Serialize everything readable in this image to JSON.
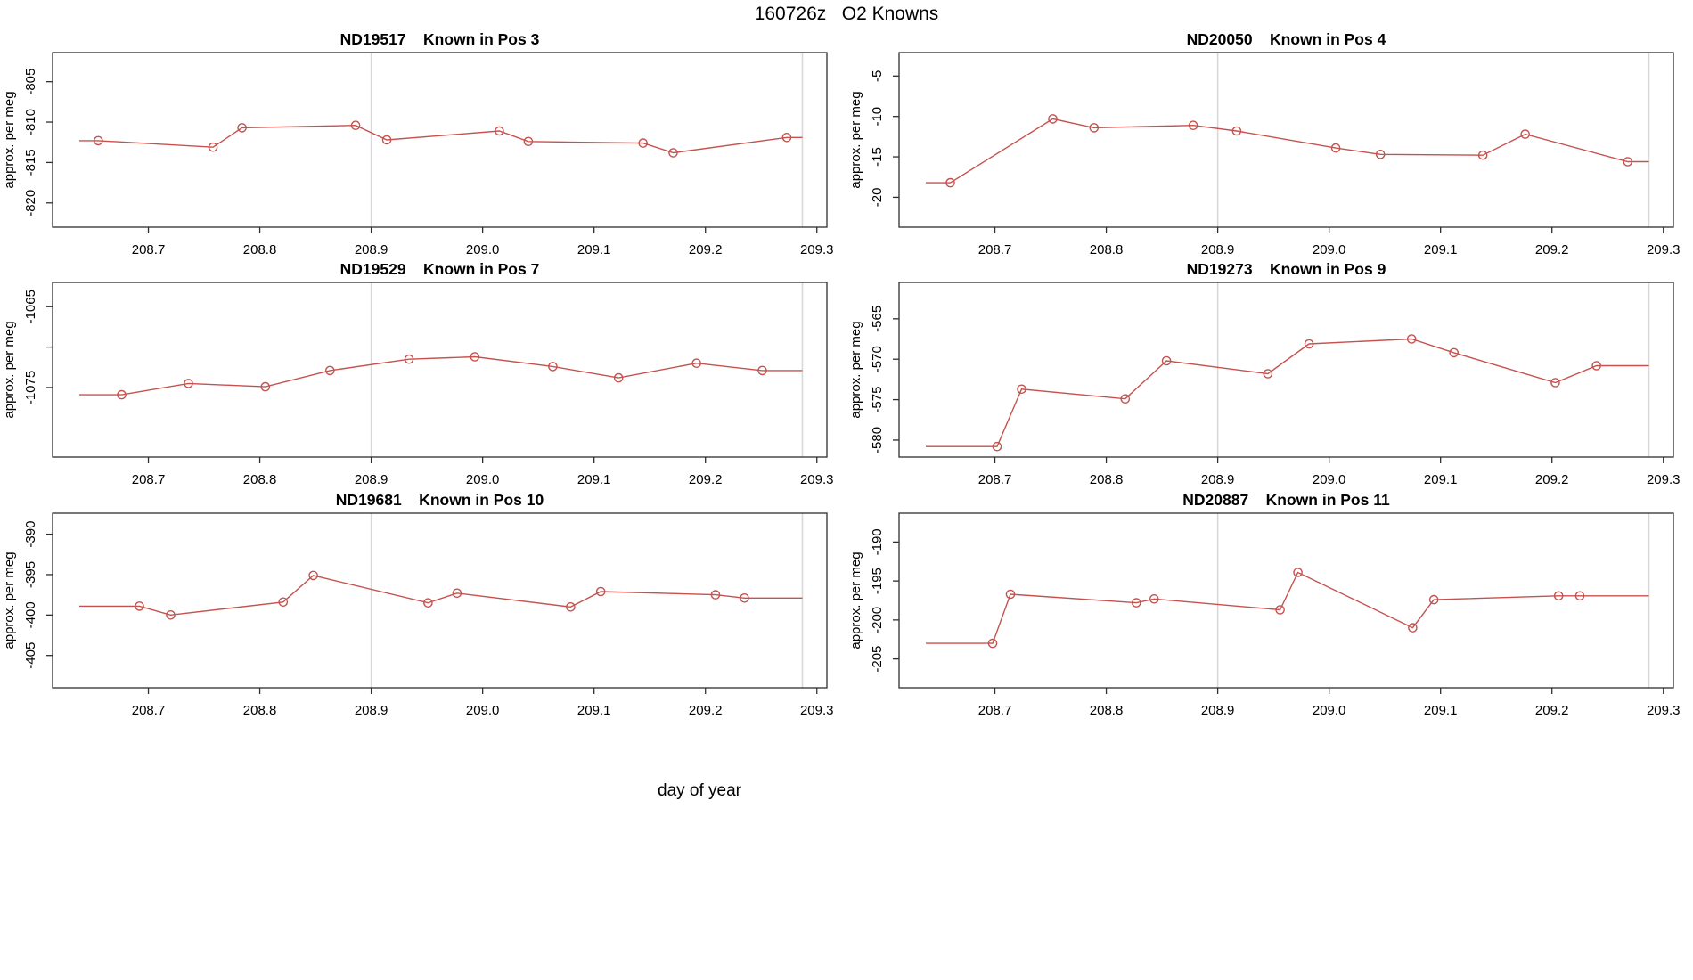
{
  "header": {
    "title": "160726z   O2 Knowns"
  },
  "footer": {
    "xlabel": "day of year"
  },
  "colors": {
    "series_line": "#c5524e",
    "marker_stroke": "#c5524e",
    "reference_line": "#d8d8d8",
    "axis_line": "#2e2e2e",
    "text": "#000000",
    "background": "#ffffff"
  },
  "axes": {
    "x_domain": [
      208.614,
      209.309
    ],
    "x_ticks": [
      {
        "v": 208.7,
        "label": "208.7"
      },
      {
        "v": 208.8,
        "label": "208.8"
      },
      {
        "v": 208.9,
        "label": "208.9"
      },
      {
        "v": 209.0,
        "label": "209.0"
      },
      {
        "v": 209.1,
        "label": "209.1"
      },
      {
        "v": 209.2,
        "label": "209.2"
      },
      {
        "v": 209.3,
        "label": "209.3"
      }
    ],
    "vlines": [
      208.9,
      209.287
    ],
    "y_axis_title": "approx. per meg"
  },
  "chart_data": [
    {
      "type": "line",
      "id": "ND19517",
      "position_label": "Known in Pos 3",
      "ylabel": "approx. per meg",
      "x": [
        208.655,
        208.758,
        208.784,
        208.886,
        208.914,
        209.015,
        209.041,
        209.144,
        209.171,
        209.273
      ],
      "y": [
        -812.3,
        -813.1,
        -810.7,
        -810.4,
        -812.2,
        -811.1,
        -812.4,
        -812.6,
        -813.8,
        -811.9
      ],
      "line_start_x": 208.638,
      "line_end_x": 209.287,
      "y_domain": [
        -823.0,
        -801.4
      ],
      "y_ticks": [
        {
          "v": -805,
          "label": "-805"
        },
        {
          "v": -810,
          "label": "-810"
        },
        {
          "v": -815,
          "label": "-815"
        },
        {
          "v": -820,
          "label": "-820"
        }
      ]
    },
    {
      "type": "line",
      "id": "ND20050",
      "position_label": "Known in Pos 4",
      "ylabel": "approx. per meg",
      "x": [
        208.66,
        208.752,
        208.789,
        208.878,
        208.917,
        209.006,
        209.046,
        209.138,
        209.176,
        209.268
      ],
      "y": [
        -18.2,
        -10.3,
        -11.4,
        -11.1,
        -11.8,
        -13.9,
        -14.7,
        -14.8,
        -12.2,
        -15.6
      ],
      "line_start_x": 208.638,
      "line_end_x": 209.287,
      "y_domain": [
        -23.7,
        -2.1
      ],
      "y_ticks": [
        {
          "v": -5,
          "label": "-5"
        },
        {
          "v": -10,
          "label": "-10"
        },
        {
          "v": -15,
          "label": "-15"
        },
        {
          "v": -20,
          "label": "-20"
        }
      ]
    },
    {
      "type": "line",
      "id": "ND19529",
      "position_label": "Known in Pos 7",
      "ylabel": "approx. per meg",
      "x": [
        208.676,
        208.736,
        208.805,
        208.863,
        208.934,
        208.993,
        209.063,
        209.122,
        209.192,
        209.251
      ],
      "y": [
        -1075.9,
        -1074.5,
        -1074.9,
        -1072.9,
        -1071.5,
        -1071.2,
        -1072.4,
        -1073.8,
        -1072.0,
        -1072.9
      ],
      "line_start_x": 208.638,
      "line_end_x": 209.287,
      "y_domain": [
        -1083.6,
        -1062.0
      ],
      "y_ticks": [
        {
          "v": -1065,
          "label": "-1065"
        },
        {
          "v": -1070,
          "label": ""
        },
        {
          "v": -1075,
          "label": "-1075"
        }
      ]
    },
    {
      "type": "line",
      "id": "ND19273",
      "position_label": "Known in Pos 9",
      "ylabel": "approx. per meg",
      "x": [
        208.702,
        208.724,
        208.817,
        208.854,
        208.945,
        208.982,
        209.074,
        209.112,
        209.203,
        209.24
      ],
      "y": [
        -580.8,
        -573.7,
        -574.9,
        -570.2,
        -571.8,
        -568.1,
        -567.5,
        -569.2,
        -572.9,
        -570.8
      ],
      "line_start_x": 208.638,
      "line_end_x": 209.287,
      "y_domain": [
        -582.1,
        -560.5
      ],
      "y_ticks": [
        {
          "v": -565,
          "label": "-565"
        },
        {
          "v": -570,
          "label": "-570"
        },
        {
          "v": -575,
          "label": "-575"
        },
        {
          "v": -580,
          "label": "-580"
        }
      ]
    },
    {
      "type": "line",
      "id": "ND19681",
      "position_label": "Known in Pos 10",
      "ylabel": "approx. per meg",
      "x": [
        208.692,
        208.72,
        208.821,
        208.848,
        208.951,
        208.977,
        209.079,
        209.106,
        209.209,
        209.235
      ],
      "y": [
        -398.9,
        -400.0,
        -398.4,
        -395.1,
        -398.5,
        -397.3,
        -399.0,
        -397.1,
        -397.5,
        -397.9
      ],
      "line_start_x": 208.638,
      "line_end_x": 209.287,
      "y_domain": [
        -409.0,
        -387.4
      ],
      "y_ticks": [
        {
          "v": -390,
          "label": "-390"
        },
        {
          "v": -395,
          "label": "-395"
        },
        {
          "v": -400,
          "label": "-400"
        },
        {
          "v": -405,
          "label": "-405"
        }
      ]
    },
    {
      "type": "line",
      "id": "ND20887",
      "position_label": "Known in Pos 11",
      "ylabel": "approx. per meg",
      "x": [
        208.698,
        208.714,
        208.827,
        208.843,
        208.956,
        208.972,
        209.075,
        209.094,
        209.206,
        209.225
      ],
      "y": [
        -203.0,
        -196.7,
        -197.8,
        -197.3,
        -198.7,
        -193.9,
        -201.0,
        -197.4,
        -196.9,
        -196.9
      ],
      "line_start_x": 208.638,
      "line_end_x": 209.287,
      "y_domain": [
        -208.7,
        -186.3
      ],
      "y_ticks": [
        {
          "v": -190,
          "label": "-190"
        },
        {
          "v": -195,
          "label": "-195"
        },
        {
          "v": -200,
          "label": "-200"
        },
        {
          "v": -205,
          "label": "-205"
        }
      ]
    }
  ]
}
